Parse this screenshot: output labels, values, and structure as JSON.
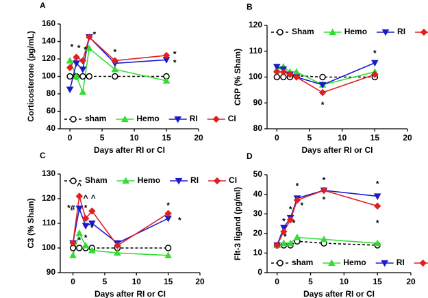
{
  "chart_data": [
    {
      "type": "line",
      "label": "A",
      "ylabel": "Corticosterone (pg/mL)",
      "xlabel": "Days after RI or CI",
      "xlim": [
        -1.5,
        20
      ],
      "xticks": [
        0,
        5,
        10,
        15,
        20
      ],
      "ylim": [
        40,
        160
      ],
      "yticks": [
        40,
        60,
        80,
        100,
        120,
        140,
        160
      ],
      "x": [
        0,
        1,
        2,
        3,
        7,
        15
      ],
      "legend": "lower",
      "series": [
        {
          "name": "sham",
          "color": "#000000",
          "marker": "circle-open",
          "dashed": true,
          "values": [
            100,
            100,
            100,
            100,
            100,
            100
          ]
        },
        {
          "name": "Hemo",
          "color": "#33dd33",
          "marker": "triangle-up",
          "dashed": false,
          "values": [
            118,
            100,
            82,
            132,
            108,
            95
          ]
        },
        {
          "name": "RI",
          "color": "#1a1acc",
          "marker": "triangle-down",
          "dashed": false,
          "values": [
            85,
            115,
            108,
            145,
            115,
            119
          ]
        },
        {
          "name": "CI",
          "color": "#e02020",
          "marker": "diamond",
          "dashed": false,
          "values": [
            110,
            122,
            118,
            145,
            118,
            124
          ]
        }
      ],
      "annotations": [
        {
          "text": "*",
          "x": 0.3,
          "y": 133
        },
        {
          "text": "*",
          "x": 1.4,
          "y": 132
        },
        {
          "text": "*",
          "x": 2.4,
          "y": 130
        },
        {
          "text": "*",
          "x": 3.8,
          "y": 147
        },
        {
          "text": "*",
          "x": 7,
          "y": 127
        },
        {
          "text": "*",
          "x": 16.3,
          "y": 125
        },
        {
          "text": "*",
          "x": 16.3,
          "y": 115
        }
      ]
    },
    {
      "type": "line",
      "label": "B",
      "ylabel": "CRP (% Sham)",
      "xlabel": "Days after RI or CI",
      "xlim": [
        -1.5,
        20
      ],
      "xticks": [
        0,
        5,
        10,
        15,
        20
      ],
      "ylim": [
        80,
        120
      ],
      "yticks": [
        80,
        90,
        100,
        110,
        120
      ],
      "x": [
        0,
        1,
        2,
        3,
        7,
        15
      ],
      "legend": "upper",
      "series": [
        {
          "name": "Sham",
          "color": "#000000",
          "marker": "circle-open",
          "dashed": true,
          "values": [
            100,
            100,
            100,
            100.5,
            100,
            100
          ]
        },
        {
          "name": "Hemo",
          "color": "#33dd33",
          "marker": "triangle-up",
          "dashed": false,
          "values": [
            103,
            104,
            102,
            102,
            97,
            102
          ]
        },
        {
          "name": "RI",
          "color": "#1a1acc",
          "marker": "triangle-down",
          "dashed": false,
          "values": [
            104,
            103,
            101,
            100,
            97,
            105.5
          ]
        },
        {
          "name": "CI",
          "color": "#e02020",
          "marker": "diamond",
          "dashed": false,
          "values": [
            102,
            102,
            101,
            100,
            94,
            101
          ]
        }
      ],
      "annotations": [
        {
          "text": "*",
          "x": 15,
          "y": 109
        },
        {
          "text": "*",
          "x": 7,
          "y": 89
        }
      ]
    },
    {
      "type": "line",
      "label": "C",
      "ylabel": "C3 (% Sham)",
      "xlabel": "Days after RI or CI",
      "xlim": [
        -2,
        20
      ],
      "xticks": [
        0,
        5,
        10,
        15,
        20
      ],
      "ylim": [
        90,
        130
      ],
      "yticks": [
        90,
        100,
        110,
        120,
        130
      ],
      "x": [
        0,
        1,
        2,
        3,
        7,
        15
      ],
      "legend": "upper",
      "series": [
        {
          "name": "Sham",
          "color": "#000000",
          "marker": "circle-open",
          "dashed": true,
          "values": [
            100,
            100,
            100,
            100,
            100,
            100
          ]
        },
        {
          "name": "Hemo",
          "color": "#33dd33",
          "marker": "triangle-up",
          "dashed": false,
          "values": [
            97,
            106,
            101,
            99,
            98,
            97
          ]
        },
        {
          "name": "RI",
          "color": "#1a1acc",
          "marker": "triangle-down",
          "dashed": false,
          "values": [
            102,
            116,
            109,
            110,
            102,
            112
          ]
        },
        {
          "name": "CI",
          "color": "#e02020",
          "marker": "diamond",
          "dashed": false,
          "values": [
            102,
            121,
            112,
            115,
            101,
            114
          ]
        }
      ],
      "annotations": [
        {
          "text": "*#",
          "x": -0.3,
          "y": 116
        },
        {
          "text": "^",
          "x": 1,
          "y": 125
        },
        {
          "text": "*",
          "x": 2,
          "y": 116
        },
        {
          "text": "^",
          "x": 2,
          "y": 120
        },
        {
          "text": "^",
          "x": 3.2,
          "y": 120
        },
        {
          "text": "*",
          "x": 3,
          "y": 108
        },
        {
          "text": "*",
          "x": 1,
          "y": 103
        },
        {
          "text": "*",
          "x": 2,
          "y": 104
        },
        {
          "text": "*",
          "x": 15,
          "y": 117
        },
        {
          "text": "*",
          "x": 16.8,
          "y": 111
        }
      ]
    },
    {
      "type": "line",
      "label": "D",
      "ylabel": "Flt-3 ligand (pg/ml)",
      "xlabel": "Days after RI or CI",
      "xlim": [
        -1.5,
        20
      ],
      "xticks": [
        0,
        5,
        10,
        15,
        20
      ],
      "ylim": [
        0,
        50
      ],
      "yticks": [
        0,
        10,
        20,
        30,
        40,
        50
      ],
      "x": [
        0,
        1,
        2,
        3,
        7,
        15
      ],
      "legend": "lower",
      "series": [
        {
          "name": "sham",
          "color": "#000000",
          "marker": "circle-open",
          "dashed": true,
          "values": [
            14,
            14,
            14,
            16,
            15,
            14
          ]
        },
        {
          "name": "Hemo",
          "color": "#33dd33",
          "marker": "triangle-up",
          "dashed": false,
          "values": [
            14,
            15,
            15,
            18,
            17,
            15
          ]
        },
        {
          "name": "RI",
          "color": "#1a1acc",
          "marker": "triangle-down",
          "dashed": false,
          "values": [
            14,
            23,
            28,
            38,
            42,
            39
          ]
        },
        {
          "name": "CI",
          "color": "#e02020",
          "marker": "diamond",
          "dashed": false,
          "values": [
            14,
            21,
            27,
            37,
            42,
            34
          ]
        }
      ],
      "annotations": [
        {
          "text": "*",
          "x": 1,
          "y": 26
        },
        {
          "text": "*",
          "x": 1.2,
          "y": 18
        },
        {
          "text": "*",
          "x": 2,
          "y": 32
        },
        {
          "text": "*",
          "x": 2.5,
          "y": 25
        },
        {
          "text": "*",
          "x": 3,
          "y": 44
        },
        {
          "text": "*",
          "x": 3.7,
          "y": 34
        },
        {
          "text": "*",
          "x": 7,
          "y": 47
        },
        {
          "text": "*",
          "x": 7,
          "y": 37
        },
        {
          "text": "*",
          "x": 15,
          "y": 45
        },
        {
          "text": "*",
          "x": 15,
          "y": 25
        }
      ]
    }
  ]
}
